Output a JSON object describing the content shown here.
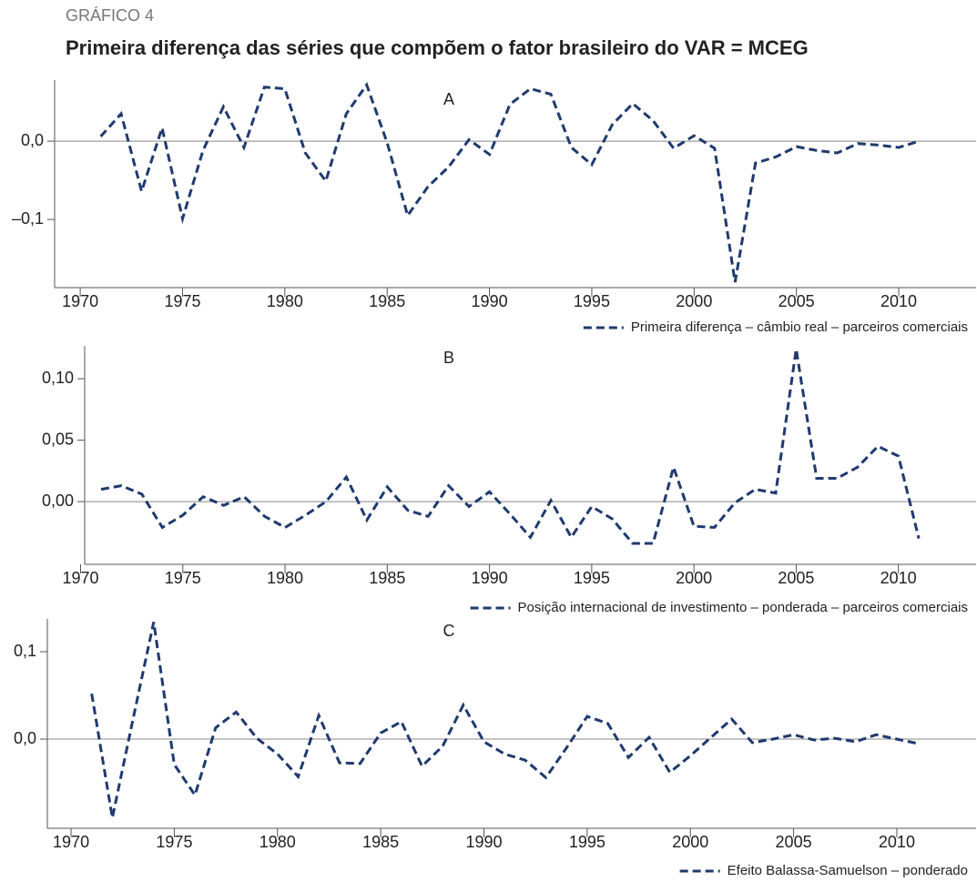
{
  "header": {
    "label": "GRÁFICO 4",
    "title": "Primeira diferença das séries que compõem o fator brasileiro do VAR = MCEG"
  },
  "chart_data": [
    {
      "type": "line",
      "title": "A",
      "x": [
        1971,
        1972,
        1973,
        1974,
        1975,
        1976,
        1977,
        1978,
        1979,
        1980,
        1981,
        1982,
        1983,
        1984,
        1985,
        1986,
        1987,
        1988,
        1989,
        1990,
        1991,
        1992,
        1993,
        1994,
        1995,
        1996,
        1997,
        1998,
        1999,
        2000,
        2001,
        2002,
        2003,
        2004,
        2005,
        2006,
        2007,
        2008,
        2009,
        2010,
        2011
      ],
      "series": [
        {
          "name": "Primeira diferença – câmbio real – parceiros comerciais",
          "color": "#1f3a6e",
          "values": [
            0.006,
            0.035,
            -0.064,
            0.017,
            -0.099,
            -0.012,
            0.044,
            -0.008,
            0.069,
            0.067,
            -0.015,
            -0.051,
            0.035,
            0.072,
            -0.002,
            -0.095,
            -0.058,
            -0.033,
            0.002,
            -0.017,
            0.047,
            0.067,
            0.06,
            -0.008,
            -0.03,
            0.021,
            0.048,
            0.026,
            -0.009,
            0.007,
            -0.009,
            -0.18,
            -0.028,
            -0.02,
            -0.007,
            -0.012,
            -0.015,
            -0.003,
            -0.005,
            -0.008,
            0.0
          ]
        }
      ],
      "xlim": [
        1968.75,
        2013.78
      ],
      "xticks": [
        1970,
        1975,
        1980,
        1985,
        1990,
        1995,
        2000,
        2005,
        2010
      ],
      "ylim": [
        -0.187,
        0.078
      ],
      "yticks": [
        {
          "value": 0,
          "label": "0,0"
        },
        {
          "value": -0.1,
          "label": "–0,1"
        }
      ],
      "zero_line": true,
      "legend": "bottom-right"
    },
    {
      "type": "line",
      "title": "B",
      "x": [
        1971,
        1972,
        1973,
        1974,
        1975,
        1976,
        1977,
        1978,
        1979,
        1980,
        1981,
        1982,
        1983,
        1984,
        1985,
        1986,
        1987,
        1988,
        1989,
        1990,
        1991,
        1992,
        1993,
        1994,
        1995,
        1996,
        1997,
        1998,
        1999,
        2000,
        2001,
        2002,
        2003,
        2004,
        2005,
        2006,
        2007,
        2008,
        2009,
        2010,
        2011
      ],
      "series": [
        {
          "name": "Posição internacional de investimento – ponderada – parceiros comerciais",
          "color": "#1f3a6e",
          "values": [
            0.01,
            0.013,
            0.006,
            -0.021,
            -0.011,
            0.004,
            -0.003,
            0.004,
            -0.012,
            -0.021,
            -0.011,
            0.0,
            0.02,
            -0.015,
            0.012,
            -0.007,
            -0.012,
            0.013,
            -0.004,
            0.008,
            -0.01,
            -0.029,
            0.001,
            -0.029,
            -0.004,
            -0.014,
            -0.034,
            -0.034,
            0.028,
            -0.02,
            -0.021,
            -0.001,
            0.01,
            0.007,
            0.124,
            0.019,
            0.019,
            0.028,
            0.045,
            0.037,
            -0.03
          ]
        }
      ],
      "xlim": [
        1970.2,
        2013.8
      ],
      "xticks": [
        1970,
        1975,
        1980,
        1985,
        1990,
        1995,
        2000,
        2005,
        2010
      ],
      "ylim": [
        -0.051,
        0.1267
      ],
      "yticks": [
        {
          "value": 0.1,
          "label": "0,10"
        },
        {
          "value": 0.05,
          "label": "0,05"
        },
        {
          "value": 0,
          "label": "0,00"
        }
      ],
      "zero_line": true,
      "legend": "bottom-right"
    },
    {
      "type": "line",
      "title": "C",
      "x": [
        1971,
        1972,
        1973,
        1974,
        1975,
        1976,
        1977,
        1978,
        1979,
        1980,
        1981,
        1982,
        1983,
        1984,
        1985,
        1986,
        1987,
        1988,
        1989,
        1990,
        1991,
        1992,
        1993,
        1994,
        1995,
        1996,
        1997,
        1998,
        1999,
        2000,
        2001,
        2002,
        2003,
        2004,
        2005,
        2006,
        2007,
        2008,
        2009,
        2010,
        2011
      ],
      "series": [
        {
          "name": "Efeito Balassa-Samuelson – ponderado",
          "color": "#1f3a6e",
          "values": [
            0.052,
            -0.09,
            0.023,
            0.134,
            -0.029,
            -0.064,
            0.013,
            0.031,
            0.001,
            -0.017,
            -0.043,
            0.027,
            -0.027,
            -0.028,
            0.007,
            0.02,
            -0.031,
            -0.008,
            0.039,
            -0.003,
            -0.017,
            -0.024,
            -0.044,
            -0.01,
            0.026,
            0.018,
            -0.021,
            0.002,
            -0.038,
            -0.019,
            0.002,
            0.023,
            -0.004,
            0.0,
            0.005,
            -0.001,
            0.001,
            -0.003,
            0.005,
            0.0,
            -0.005
          ]
        }
      ],
      "xlim": [
        1968.85,
        2013.84
      ],
      "xticks": [
        1970,
        1975,
        1980,
        1985,
        1990,
        1995,
        2000,
        2005,
        2010
      ],
      "ylim": [
        -0.102,
        0.1375
      ],
      "yticks": [
        {
          "value": 0.1,
          "label": "0,1"
        },
        {
          "value": 0,
          "label": "0,0"
        }
      ],
      "zero_line": true,
      "legend": "bottom-right"
    }
  ]
}
